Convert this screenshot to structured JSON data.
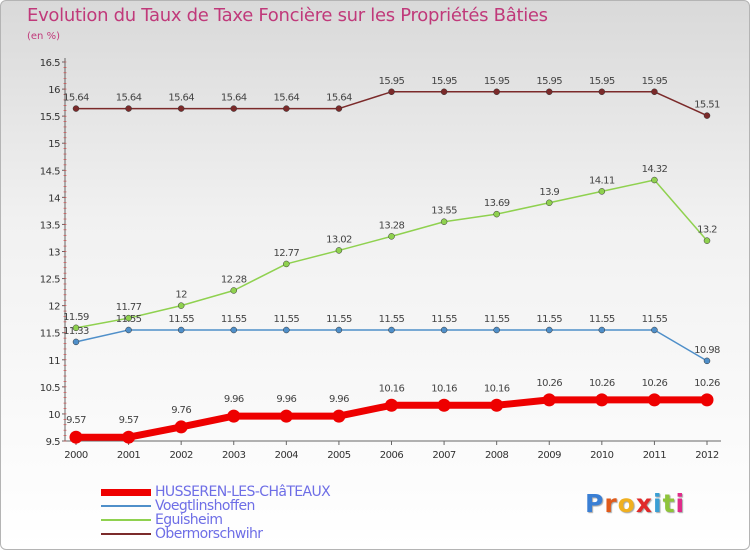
{
  "header": {
    "title": "Evolution du Taux de Taxe Foncière sur les Propriétés Bâties",
    "subtitle": "(en %)"
  },
  "chart_data": {
    "type": "line",
    "title": "Evolution du Taux de Taxe Foncière sur les Propriétés Bâties",
    "ylabel": "(en %)",
    "xlabel": "",
    "x": [
      "2000",
      "2001",
      "2002",
      "2003",
      "2004",
      "2005",
      "2006",
      "2007",
      "2008",
      "2009",
      "2010",
      "2011",
      "2012"
    ],
    "ylim": [
      9.5,
      16.5
    ],
    "yticks": [
      "9.5",
      "10",
      "10.5",
      "11",
      "11.5",
      "12",
      "12.5",
      "13",
      "13.5",
      "14",
      "14.5",
      "15",
      "15.5",
      "16",
      "16.5"
    ],
    "grid": false,
    "legend": "bottom-left",
    "series": [
      {
        "name": "Obermorschwihr",
        "color": "#7b2a2a",
        "values": [
          15.64,
          15.64,
          15.64,
          15.64,
          15.64,
          15.64,
          15.95,
          15.95,
          15.95,
          15.95,
          15.95,
          15.95,
          15.51
        ],
        "labels": [
          "15.64",
          "15.64",
          "15.64",
          "15.64",
          "15.64",
          "15.64",
          "15.95",
          "15.95",
          "15.95",
          "15.95",
          "15.95",
          "15.95",
          "15.51"
        ]
      },
      {
        "name": "Eguisheim",
        "color": "#8fd14f",
        "values": [
          11.59,
          11.77,
          12,
          12.28,
          12.77,
          13.02,
          13.28,
          13.55,
          13.69,
          13.9,
          14.11,
          14.32,
          13.2
        ],
        "labels": [
          "11.59",
          "11.77",
          "12",
          "12.28",
          "12.77",
          "13.02",
          "13.28",
          "13.55",
          "13.69",
          "13.9",
          "14.11",
          "14.32",
          "13.2"
        ]
      },
      {
        "name": "Voegtlinshoffen",
        "color": "#4f8fc9",
        "values": [
          11.33,
          11.55,
          11.55,
          11.55,
          11.55,
          11.55,
          11.55,
          11.55,
          11.55,
          11.55,
          11.55,
          11.55,
          10.98
        ],
        "labels": [
          "11.33",
          "11.55",
          "11.55",
          "11.55",
          "11.55",
          "11.55",
          "11.55",
          "11.55",
          "11.55",
          "11.55",
          "11.55",
          "11.55",
          "10.98"
        ]
      },
      {
        "name": "HUSSEREN-LES-CHâTEAUX",
        "color": "#ee0000",
        "values": [
          9.57,
          9.57,
          9.76,
          9.96,
          9.96,
          9.96,
          10.16,
          10.16,
          10.16,
          10.26,
          10.26,
          10.26,
          10.26
        ],
        "labels": [
          "9.57",
          "9.57",
          "9.76",
          "9.96",
          "9.96",
          "9.96",
          "10.16",
          "10.16",
          "10.16",
          "10.26",
          "10.26",
          "10.26",
          "10.26"
        ]
      }
    ]
  },
  "legend": {
    "items": [
      {
        "label": "HUSSEREN-LES-CHâTEAUX",
        "color": "#ee0000"
      },
      {
        "label": "Voegtlinshoffen",
        "color": "#4f8fc9"
      },
      {
        "label": "Eguisheim",
        "color": "#8fd14f"
      },
      {
        "label": "Obermorschwihr",
        "color": "#7b2a2a"
      }
    ]
  },
  "logo": {
    "text": "Proxiti",
    "letter_colors": [
      "#3a7fd4",
      "#e05a1a",
      "#f0b020",
      "#e02a2a",
      "#3a9fd4",
      "#8fc43a",
      "#e02a8a"
    ]
  }
}
